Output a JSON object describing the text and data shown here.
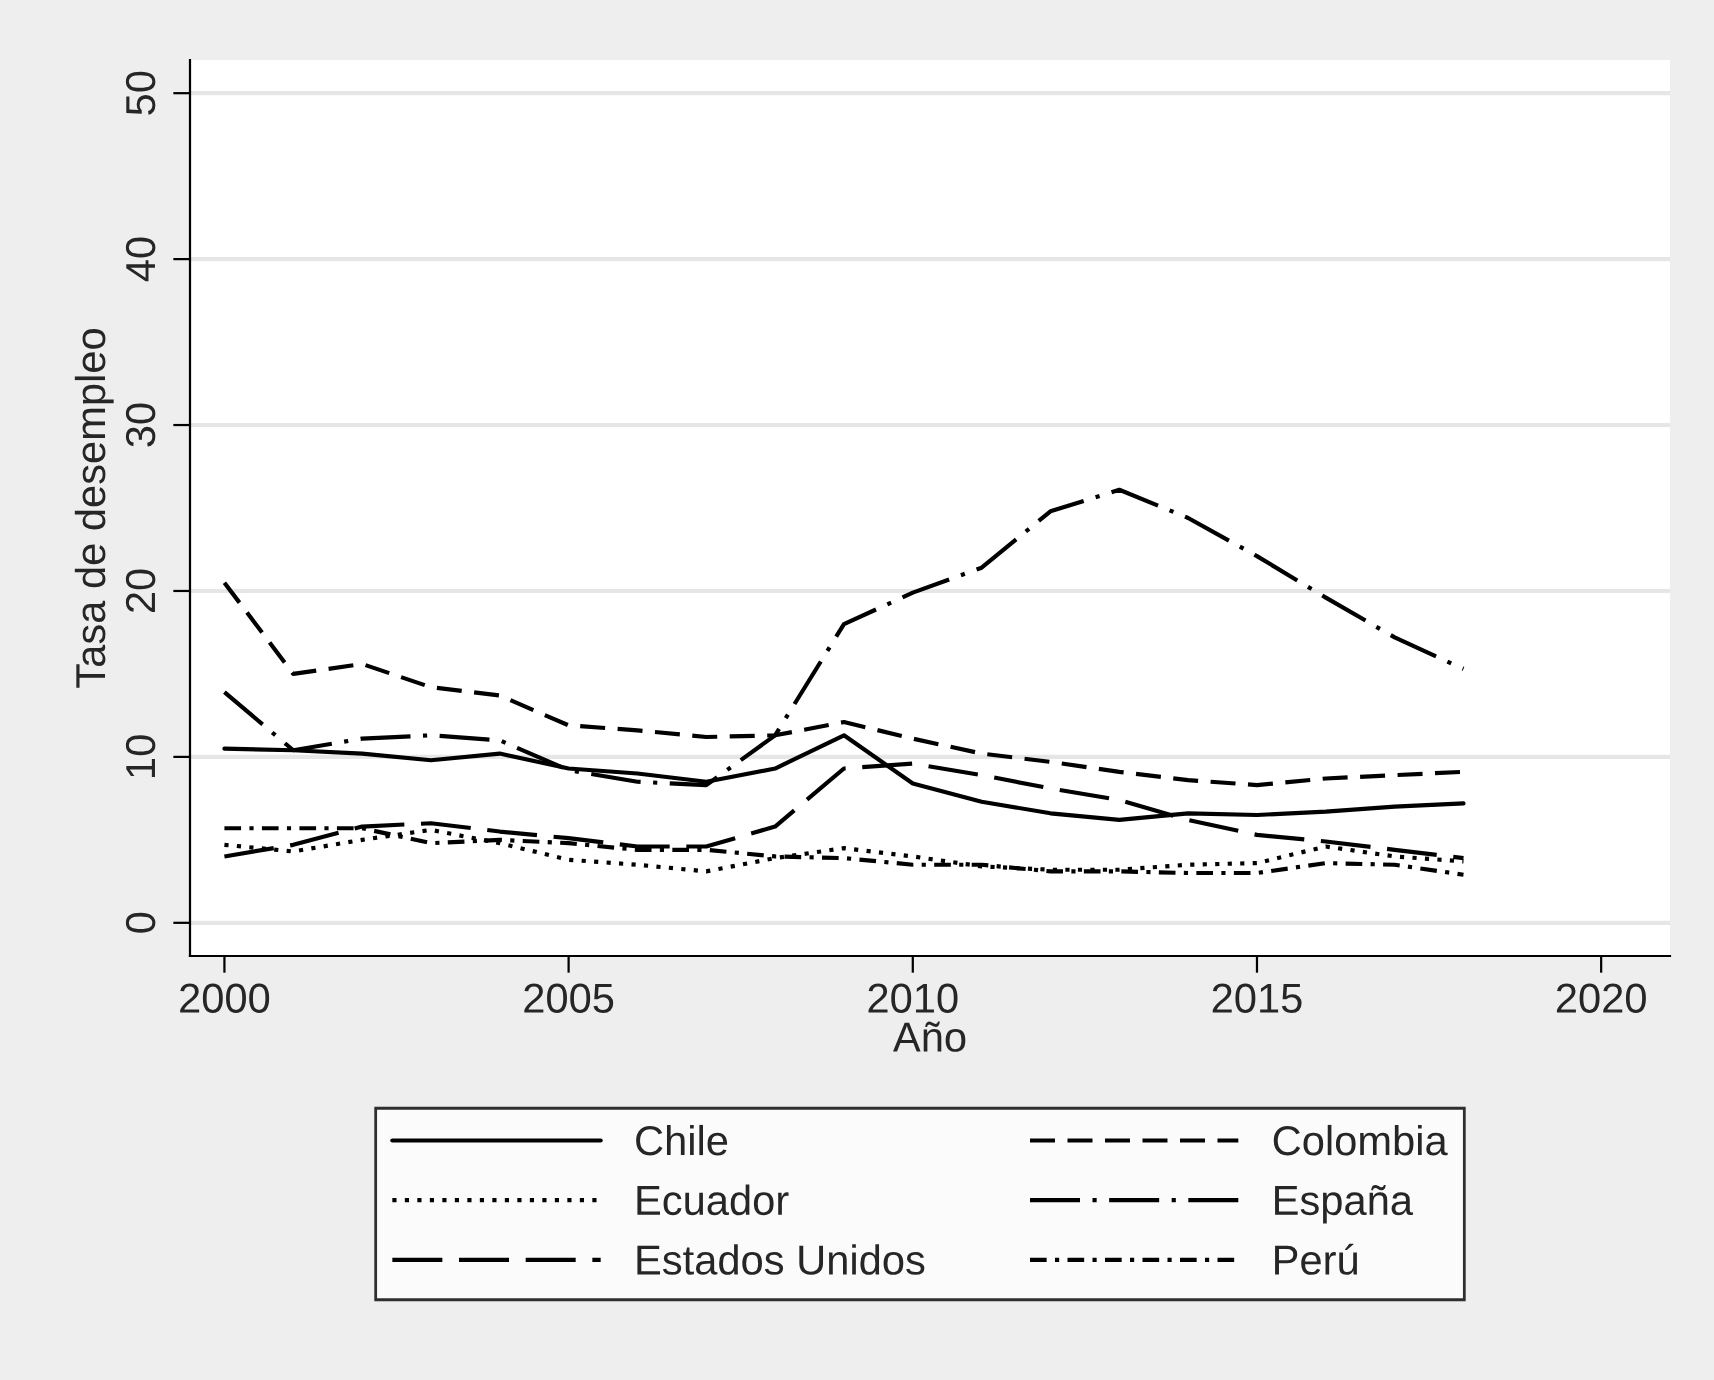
{
  "chart_data": {
    "type": "line",
    "xlabel": "Año",
    "ylabel": "Tasa de desempleo",
    "x": [
      2000,
      2001,
      2002,
      2003,
      2004,
      2005,
      2006,
      2007,
      2008,
      2009,
      2010,
      2011,
      2012,
      2013,
      2014,
      2015,
      2016,
      2017,
      2018
    ],
    "xlim": [
      1999.5,
      2021
    ],
    "xticks": [
      2000,
      2005,
      2010,
      2015,
      2020
    ],
    "ylim": [
      -2,
      52
    ],
    "yticks": [
      0,
      10,
      20,
      30,
      40,
      50
    ],
    "grid": "y",
    "legend": "bottom",
    "marker": "none",
    "series": [
      {
        "name": "Chile",
        "color": "#000000",
        "line_style": "solid",
        "values": [
          10.5,
          10.4,
          10.2,
          9.8,
          10.2,
          9.3,
          9.0,
          8.5,
          9.3,
          11.3,
          8.4,
          7.3,
          6.6,
          6.2,
          6.6,
          6.5,
          6.7,
          7.0,
          7.2
        ]
      },
      {
        "name": "Colombia",
        "color": "#000000",
        "line_style": "dashed",
        "values": [
          20.5,
          15.0,
          15.6,
          14.2,
          13.7,
          11.9,
          11.6,
          11.2,
          11.3,
          12.1,
          11.1,
          10.2,
          9.7,
          9.1,
          8.6,
          8.3,
          8.7,
          8.9,
          9.1
        ]
      },
      {
        "name": "Ecuador",
        "color": "#000000",
        "line_style": "dotted",
        "values": [
          4.7,
          4.3,
          5.0,
          5.6,
          4.8,
          3.8,
          3.5,
          3.1,
          3.9,
          4.5,
          4.0,
          3.4,
          3.2,
          3.2,
          3.5,
          3.6,
          4.6,
          4.0,
          3.7
        ]
      },
      {
        "name": "España",
        "color": "#000000",
        "line_style": "longdash_dot",
        "values": [
          13.9,
          10.4,
          11.1,
          11.3,
          11.0,
          9.2,
          8.5,
          8.3,
          11.3,
          18.0,
          19.9,
          21.4,
          24.8,
          26.1,
          24.4,
          22.1,
          19.6,
          17.2,
          15.3
        ]
      },
      {
        "name": "Estados Unidos",
        "color": "#000000",
        "line_style": "longdash",
        "values": [
          4.0,
          4.7,
          5.8,
          6.0,
          5.5,
          5.1,
          4.6,
          4.6,
          5.8,
          9.3,
          9.6,
          8.9,
          8.1,
          7.4,
          6.2,
          5.3,
          4.9,
          4.4,
          3.9
        ]
      },
      {
        "name": "Perú",
        "color": "#000000",
        "line_style": "dash_dot",
        "values": [
          5.7,
          5.7,
          5.7,
          4.8,
          5.0,
          4.8,
          4.4,
          4.4,
          4.0,
          3.9,
          3.5,
          3.5,
          3.1,
          3.1,
          3.0,
          3.0,
          3.6,
          3.5,
          2.9
        ]
      }
    ]
  }
}
